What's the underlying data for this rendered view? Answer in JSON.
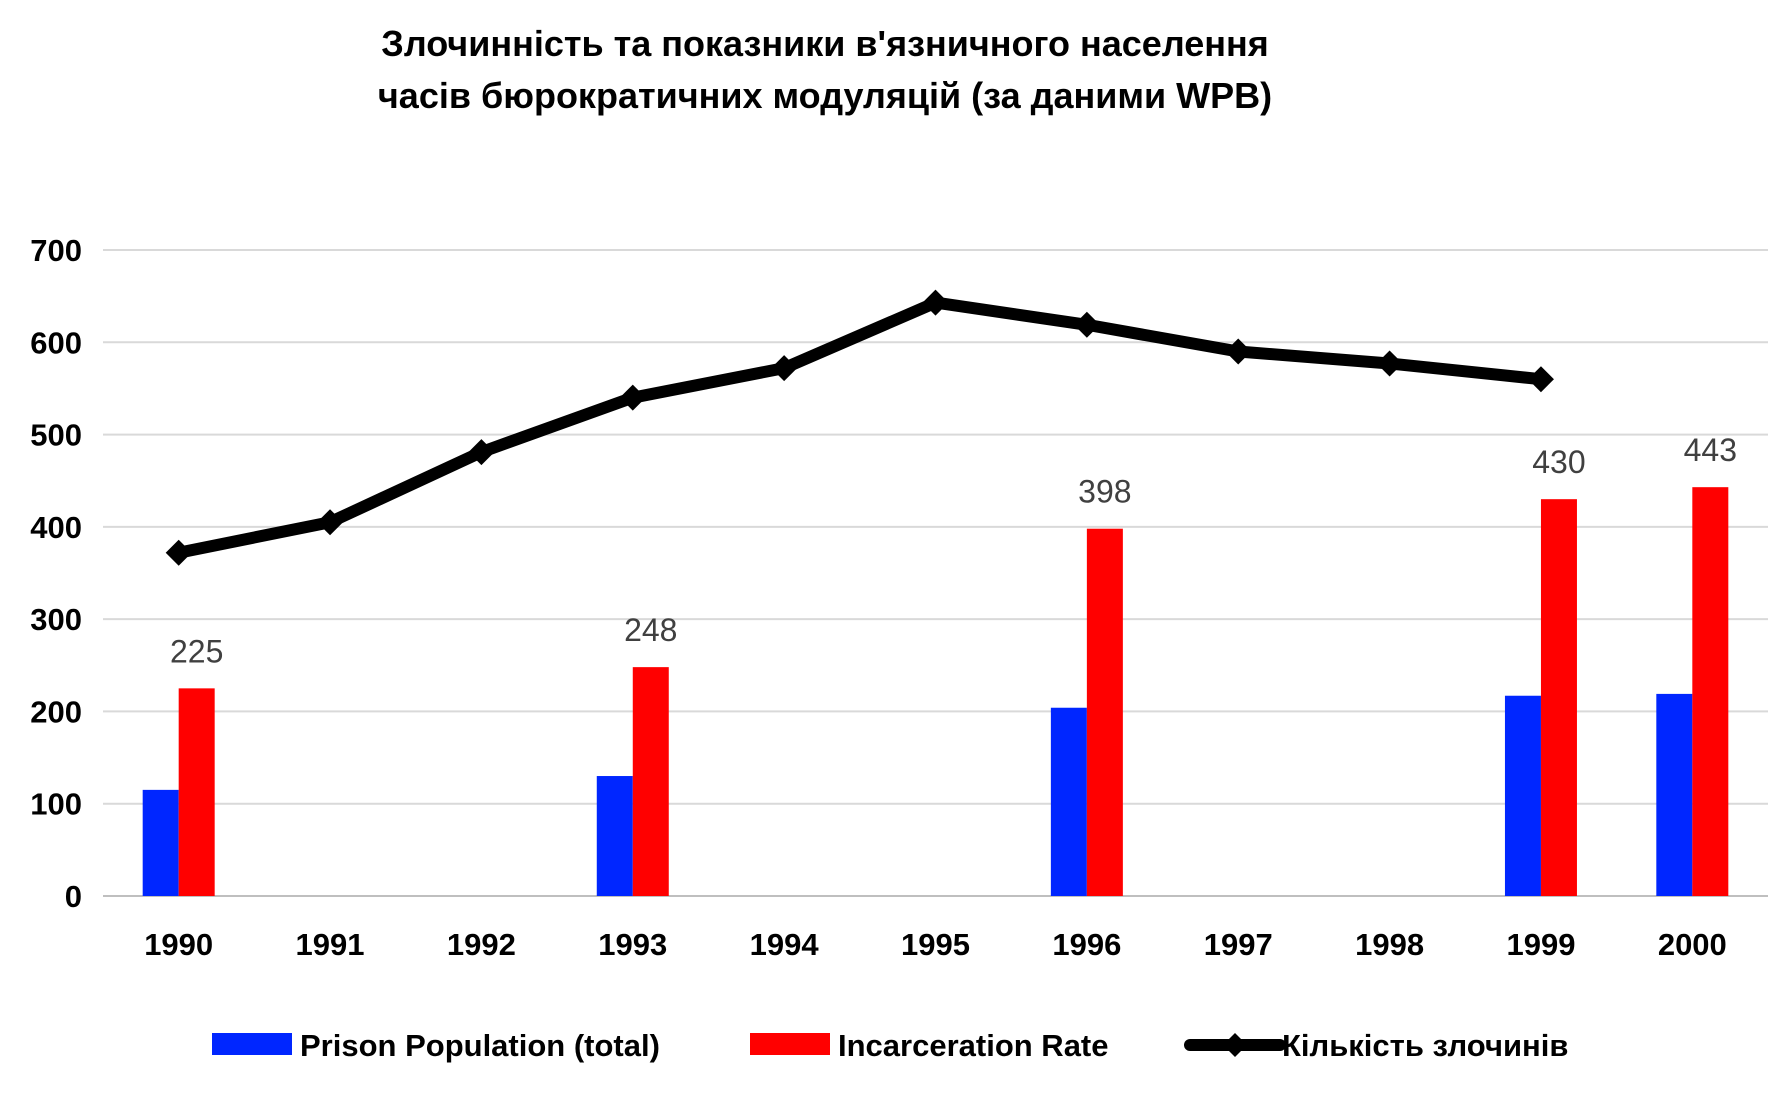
{
  "chart_data": {
    "type": "bar",
    "title_line1": "Злочинність та показники в'язничного населення",
    "title_line2": "часів бюрократичних модуляцій (за даними WPB)",
    "categories": [
      "1990",
      "1991",
      "1992",
      "1993",
      "1994",
      "1995",
      "1996",
      "1997",
      "1998",
      "1999",
      "2000"
    ],
    "ylim": [
      0,
      700
    ],
    "yticks": [
      0,
      100,
      200,
      300,
      400,
      500,
      600,
      700
    ],
    "grid": true,
    "legend_position": "bottom",
    "series": [
      {
        "name": "Prison Population (total)",
        "kind": "bar",
        "color": "#0026FF",
        "values": [
          115,
          null,
          null,
          130,
          null,
          null,
          204,
          null,
          null,
          217,
          219
        ]
      },
      {
        "name": "Incarceration Rate",
        "kind": "bar",
        "color": "#FF0000",
        "values": [
          225,
          null,
          null,
          248,
          null,
          null,
          398,
          null,
          null,
          430,
          443
        ],
        "data_labels": [
          "225",
          "",
          "",
          "248",
          "",
          "",
          "398",
          "",
          "",
          "430",
          "443"
        ]
      },
      {
        "name": "Кількість злочинів",
        "kind": "line",
        "color": "#000000",
        "marker": "diamond",
        "values": [
          372,
          405,
          481,
          540,
          572,
          643,
          619,
          590,
          577,
          560,
          null
        ]
      }
    ]
  }
}
